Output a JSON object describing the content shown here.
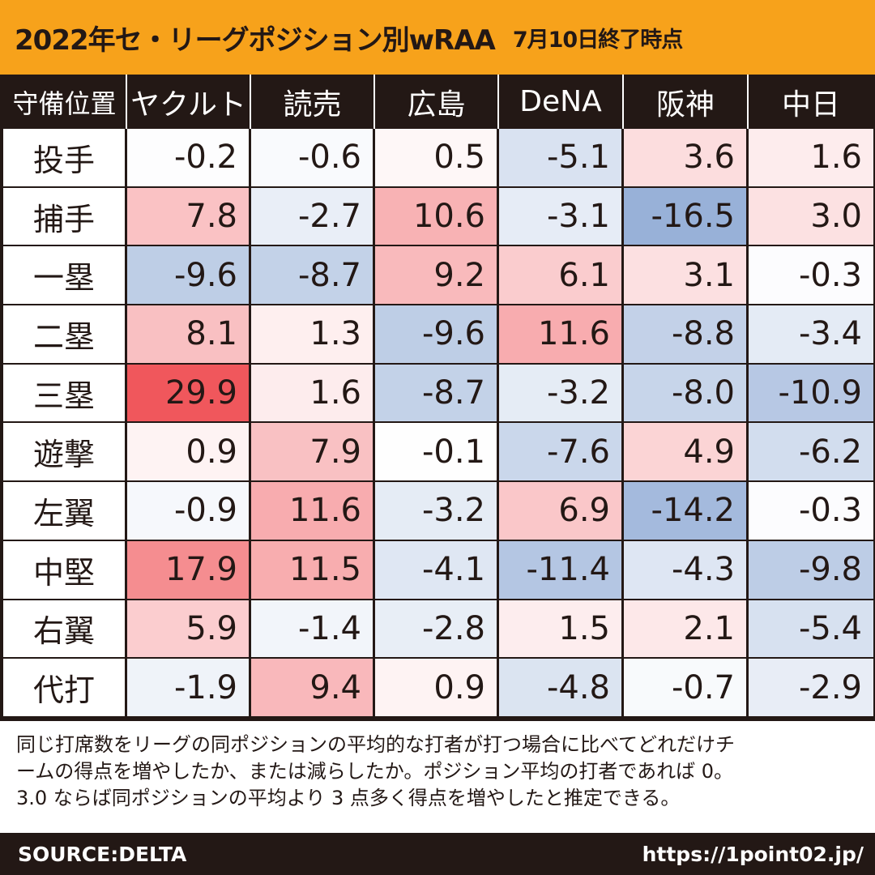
{
  "header": {
    "title": "2022年セ・リーグポジション別wRAA",
    "subtitle": "7月10日終了時点"
  },
  "chart_data": {
    "type": "table",
    "title": "2022年セ・リーグポジション別wRAA",
    "subtitle": "7月10日終了時点",
    "row_header_label": "守備位置",
    "columns": [
      "ヤクルト",
      "読売",
      "広島",
      "DeNA",
      "阪神",
      "中日"
    ],
    "rows": [
      {
        "position": "投手",
        "values": [
          "-0.2",
          "-0.6",
          "0.5",
          "-5.1",
          "3.6",
          "1.6"
        ]
      },
      {
        "position": "捕手",
        "values": [
          "7.8",
          "-2.7",
          "10.6",
          "-3.1",
          "-16.5",
          "3.0"
        ]
      },
      {
        "position": "一塁",
        "values": [
          "-9.6",
          "-8.7",
          "9.2",
          "6.1",
          "3.1",
          "-0.3"
        ]
      },
      {
        "position": "二塁",
        "values": [
          "8.1",
          "1.3",
          "-9.6",
          "11.6",
          "-8.8",
          "-3.4"
        ]
      },
      {
        "position": "三塁",
        "values": [
          "29.9",
          "1.6",
          "-8.7",
          "-3.2",
          "-8.0",
          "-10.9"
        ]
      },
      {
        "position": "遊撃",
        "values": [
          "0.9",
          "7.9",
          "-0.1",
          "-7.6",
          "4.9",
          "-6.2"
        ]
      },
      {
        "position": "左翼",
        "values": [
          "-0.9",
          "11.6",
          "-3.2",
          "6.9",
          "-14.2",
          "-0.3"
        ]
      },
      {
        "position": "中堅",
        "values": [
          "17.9",
          "11.5",
          "-4.1",
          "-11.4",
          "-4.3",
          "-9.8"
        ]
      },
      {
        "position": "右翼",
        "values": [
          "5.9",
          "-1.4",
          "-2.8",
          "1.5",
          "2.1",
          "-5.4"
        ]
      },
      {
        "position": "代打",
        "values": [
          "-1.9",
          "9.4",
          "0.9",
          "-4.8",
          "-0.7",
          "-2.9"
        ]
      }
    ],
    "color_scale": {
      "positive": "#f0575c",
      "negative": "#98b1d8",
      "neutral": "#ffffff"
    }
  },
  "note": {
    "lines": [
      "同じ打席数をリーグの同ポジションの平均的な打者が打つ場合に比べてどれだけチ",
      "ームの得点を増やしたか、または減らしたか。ポジション平均の打者であれば 0。",
      "3.0 ならば同ポジションの平均より 3 点多く得点を増やしたと推定できる。"
    ]
  },
  "footer": {
    "source": "SOURCE:DELTA",
    "url": "https://1point02.jp/"
  }
}
